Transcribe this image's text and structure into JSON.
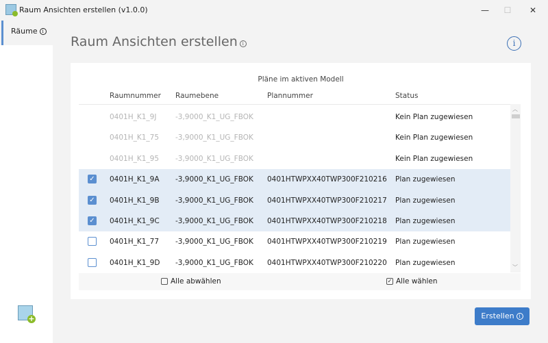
{
  "window": {
    "title": "Raum Ansichten erstellen (v1.0.0)",
    "minimize": "—",
    "maximize": "☐",
    "close": "✕"
  },
  "sidebar": {
    "items": [
      {
        "label": "Räume"
      }
    ]
  },
  "page": {
    "title": "Raum Ansichten erstellen"
  },
  "table": {
    "caption": "Pläne im aktiven Modell",
    "headers": [
      "Raumnummer",
      "Raumebene",
      "Plannummer",
      "Status"
    ],
    "rows": [
      {
        "checked": null,
        "raumnummer": "0401H_K1_9J",
        "raumebene": "-3,9000_K1_UG_FBOK",
        "plannummer": "",
        "status": "Kein Plan zugewiesen"
      },
      {
        "checked": null,
        "raumnummer": "0401H_K1_75",
        "raumebene": "-3,9000_K1_UG_FBOK",
        "plannummer": "",
        "status": "Kein Plan zugewiesen"
      },
      {
        "checked": null,
        "raumnummer": "0401H_K1_95",
        "raumebene": "-3,9000_K1_UG_FBOK",
        "plannummer": "",
        "status": "Kein Plan zugewiesen"
      },
      {
        "checked": true,
        "raumnummer": "0401H_K1_9A",
        "raumebene": "-3,9000_K1_UG_FBOK",
        "plannummer": "0401HTWPXX40TWP300F210216",
        "status": "Plan zugewiesen"
      },
      {
        "checked": true,
        "raumnummer": "0401H_K1_9B",
        "raumebene": "-3,9000_K1_UG_FBOK",
        "plannummer": "0401HTWPXX40TWP300F210217",
        "status": "Plan zugewiesen"
      },
      {
        "checked": true,
        "raumnummer": "0401H_K1_9C",
        "raumebene": "-3,9000_K1_UG_FBOK",
        "plannummer": "0401HTWPXX40TWP300F210218",
        "status": "Plan zugewiesen"
      },
      {
        "checked": false,
        "raumnummer": "0401H_K1_77",
        "raumebene": "-3,9000_K1_UG_FBOK",
        "plannummer": "0401HTWPXX40TWP300F210219",
        "status": "Plan zugewiesen"
      },
      {
        "checked": false,
        "raumnummer": "0401H_K1_9D",
        "raumebene": "-3,9000_K1_UG_FBOK",
        "plannummer": "0401HTWPXX40TWP300F210220",
        "status": "Plan zugewiesen"
      }
    ],
    "deselect_all": "Alle abwählen",
    "select_all": "Alle wählen"
  },
  "actions": {
    "create": "Erstellen"
  },
  "colors": {
    "accent": "#3d7cc9",
    "selected_row": "#e3ecf6"
  }
}
